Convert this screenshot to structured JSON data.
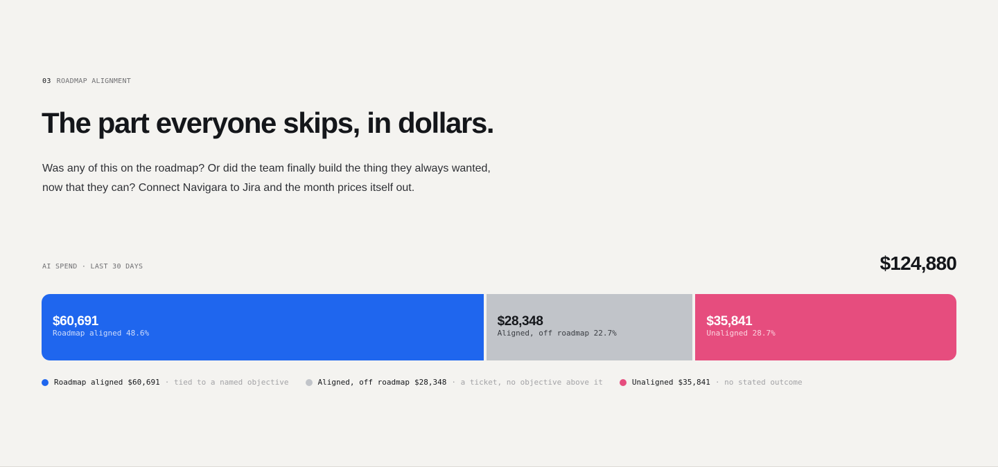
{
  "section": {
    "number": "03",
    "eyebrow": "ROADMAP ALIGNMENT",
    "title": "The part everyone skips, in dollars.",
    "lede": "Was any of this on the roadmap? Or did the team finally build the thing they always wanted, now that they can? Connect Navigara to Jira and the month prices itself out."
  },
  "spend": {
    "label": "AI SPEND · LAST 30 DAYS",
    "total": "$124,880"
  },
  "chart_data": {
    "type": "bar",
    "orientation": "horizontal-stacked",
    "total": 124880,
    "categories": [
      "Roadmap aligned",
      "Aligned, off roadmap",
      "Unaligned"
    ],
    "values": [
      60691,
      28348,
      35841
    ],
    "percent": [
      48.6,
      22.7,
      28.7
    ],
    "value_labels": [
      "$60,691",
      "$28,348",
      "$35,841"
    ],
    "segment_labels": [
      "Roadmap aligned 48.6%",
      "Aligned, off roadmap 22.7%",
      "Unaligned 28.7%"
    ],
    "notes": [
      "· tied to a named objective",
      "· a ticket, no objective above it",
      "· no stated outcome"
    ],
    "colors": [
      "#1f66ee",
      "#c1c4c9",
      "#e64d7e"
    ],
    "text_colors": [
      "#ffffff",
      "#14161a",
      "#ffffff"
    ],
    "sublabel_colors": [
      "#cfdcfb",
      "#3a3d42",
      "#fbd3df"
    ],
    "legend": "bottom"
  }
}
